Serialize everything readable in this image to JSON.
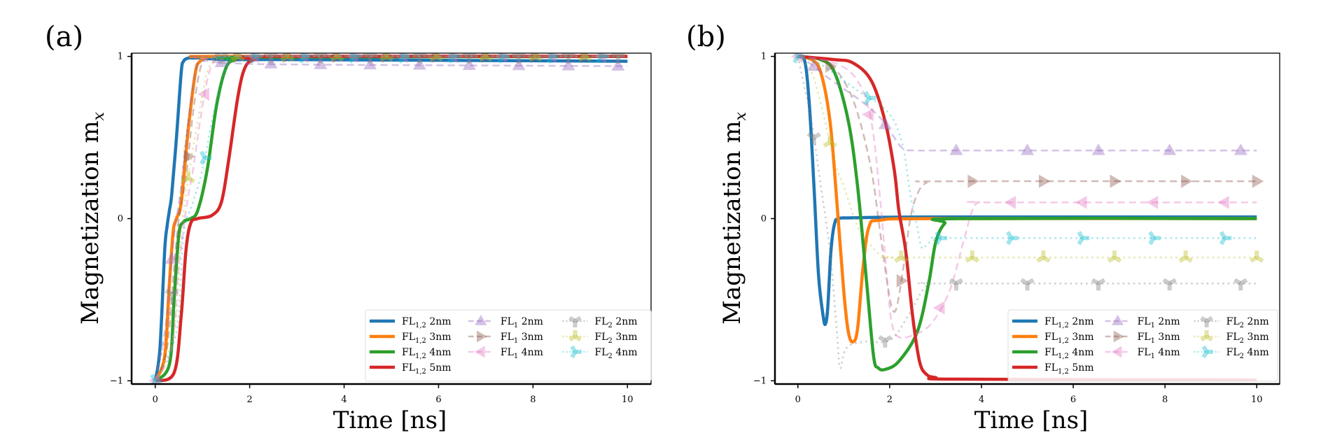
{
  "chart_data": [
    {
      "panel": "(a)",
      "type": "line",
      "xlabel": "Time [ns]",
      "ylabel": "Magnetization m_x",
      "xlim": [
        -0.5,
        10.5
      ],
      "ylim": [
        -1.02,
        1.02
      ],
      "xticks": [
        0,
        2,
        4,
        6,
        8,
        10
      ],
      "yticks": [
        -1,
        0,
        1
      ],
      "ytick_labels": [
        "−1",
        "0",
        "1"
      ],
      "grid": false,
      "legend": {
        "placement": "bottom-right",
        "columns": 3
      },
      "series": [
        {
          "name": "FL1,2 2nm",
          "label_main": "FL",
          "label_sub": "1,2",
          "label_tail": " 2nm",
          "color": "#1f77b4",
          "style": "solid",
          "marker": "none",
          "x": [
            0,
            0.1,
            0.2,
            0.25,
            0.3,
            0.35,
            0.45,
            0.55,
            0.6,
            0.7,
            0.8,
            1.0,
            1.5,
            3,
            10
          ],
          "y": [
            -1,
            -0.8,
            -0.2,
            -0.05,
            0.05,
            0.15,
            0.5,
            0.9,
            0.97,
            0.99,
            0.99,
            0.99,
            0.98,
            0.98,
            0.97
          ]
        },
        {
          "name": "FL1,2 3nm",
          "label_main": "FL",
          "label_sub": "1,2",
          "label_tail": " 3nm",
          "color": "#ff7f0e",
          "style": "solid",
          "marker": "none",
          "x": [
            0,
            0.2,
            0.3,
            0.38,
            0.45,
            0.55,
            0.7,
            0.85,
            0.95,
            1.1,
            1.5,
            10
          ],
          "y": [
            -1,
            -0.85,
            -0.4,
            -0.08,
            0.0,
            0.1,
            0.55,
            0.9,
            0.97,
            0.995,
            1.0,
            1.0
          ]
        },
        {
          "name": "FL1,2 4nm",
          "label_main": "FL",
          "label_sub": "1,2",
          "label_tail": " 4nm",
          "color": "#2ca02c",
          "style": "solid",
          "marker": "none",
          "x": [
            0,
            0.3,
            0.4,
            0.5,
            0.6,
            0.75,
            0.9,
            1.1,
            1.3,
            1.5,
            1.7,
            2.0,
            10
          ],
          "y": [
            -1,
            -0.9,
            -0.5,
            -0.1,
            -0.02,
            0.0,
            0.05,
            0.3,
            0.7,
            0.93,
            0.98,
            0.995,
            1.0
          ]
        },
        {
          "name": "FL1,2 5nm",
          "label_main": "FL",
          "label_sub": "1,2",
          "label_tail": " 5nm",
          "color": "#d62728",
          "style": "solid",
          "marker": "none",
          "x": [
            0,
            0.4,
            0.55,
            0.65,
            0.75,
            0.9,
            1.2,
            1.4,
            1.55,
            1.75,
            1.9,
            2.1,
            2.5,
            10
          ],
          "y": [
            -1,
            -0.95,
            -0.6,
            -0.2,
            -0.03,
            0.0,
            0.02,
            0.1,
            0.35,
            0.75,
            0.93,
            0.98,
            1.0,
            1.0
          ]
        },
        {
          "name": "FL1 2nm",
          "label_main": "FL",
          "label_sub": "1",
          "label_tail": " 2nm",
          "color": "#9467bd",
          "style": "dashed",
          "marker": "triangle-up",
          "x": [
            0,
            0.2,
            0.3,
            0.4,
            0.55,
            0.7,
            0.85,
            1.0,
            1.5,
            3,
            10
          ],
          "y": [
            -1,
            -0.7,
            -0.4,
            -0.1,
            0.2,
            0.6,
            0.9,
            0.97,
            0.96,
            0.95,
            0.94
          ]
        },
        {
          "name": "FL1 3nm",
          "label_main": "FL",
          "label_sub": "1",
          "label_tail": " 3nm",
          "color": "#8c564b",
          "style": "dashed",
          "marker": "triangle-right",
          "x": [
            0,
            0.25,
            0.4,
            0.5,
            0.65,
            0.8,
            0.95,
            1.1,
            1.5,
            10
          ],
          "y": [
            -1,
            -0.8,
            -0.3,
            0.0,
            0.25,
            0.65,
            0.92,
            0.99,
            1.0,
            1.0
          ]
        },
        {
          "name": "FL1 4nm",
          "label_main": "FL",
          "label_sub": "1",
          "label_tail": " 4nm",
          "color": "#e377c2",
          "style": "dashed",
          "marker": "triangle-left",
          "x": [
            0,
            0.35,
            0.5,
            0.65,
            0.8,
            0.95,
            1.1,
            1.25,
            1.5,
            10
          ],
          "y": [
            -1,
            -0.8,
            -0.3,
            0.05,
            0.3,
            0.6,
            0.85,
            0.97,
            1.0,
            1.0
          ]
        },
        {
          "name": "FL2 2nm",
          "label_main": "FL",
          "label_sub": "2",
          "label_tail": " 2nm",
          "color": "#7f7f7f",
          "style": "dotted",
          "marker": "tri-down",
          "x": [
            0,
            0.3,
            0.45,
            0.55,
            0.7,
            0.85,
            1.0,
            1.5,
            10
          ],
          "y": [
            -1,
            -0.6,
            -0.2,
            0.2,
            0.6,
            0.9,
            0.98,
            1.0,
            1.0
          ]
        },
        {
          "name": "FL2 3nm",
          "label_main": "FL",
          "label_sub": "2",
          "label_tail": " 3nm",
          "color": "#bcbd22",
          "style": "dotted",
          "marker": "tri-up",
          "x": [
            0,
            0.4,
            0.55,
            0.7,
            0.9,
            1.1,
            1.3,
            1.6,
            10
          ],
          "y": [
            -1,
            -0.7,
            -0.1,
            0.25,
            0.6,
            0.9,
            0.98,
            1.0,
            1.0
          ]
        },
        {
          "name": "FL2 4nm",
          "label_main": "FL",
          "label_sub": "2",
          "label_tail": " 4nm",
          "color": "#17becf",
          "style": "dotted",
          "marker": "tri-left",
          "x": [
            0,
            0.45,
            0.6,
            0.8,
            1.0,
            1.2,
            1.4,
            1.6,
            1.9,
            10
          ],
          "y": [
            -1,
            -0.7,
            -0.1,
            0.1,
            0.3,
            0.6,
            0.85,
            0.97,
            1.0,
            1.0
          ]
        }
      ]
    },
    {
      "panel": "(b)",
      "type": "line",
      "xlabel": "Time [ns]",
      "ylabel": "Magnetization m_x",
      "xlim": [
        -0.5,
        10.5
      ],
      "ylim": [
        -1.02,
        1.02
      ],
      "xticks": [
        0,
        2,
        4,
        6,
        8,
        10
      ],
      "yticks": [
        -1,
        0,
        1
      ],
      "ytick_labels": [
        "−1",
        "0",
        "1"
      ],
      "grid": false,
      "legend": {
        "placement": "bottom-right",
        "columns": 3
      },
      "series": [
        {
          "name": "FL1,2 2nm",
          "label_main": "FL",
          "label_sub": "1,2",
          "label_tail": " 2nm",
          "color": "#1f77b4",
          "style": "solid",
          "marker": "none",
          "x": [
            0,
            0.15,
            0.25,
            0.35,
            0.45,
            0.55,
            0.6,
            0.65,
            0.72,
            0.8,
            0.9,
            1.2,
            3,
            10
          ],
          "y": [
            1.0,
            0.97,
            0.7,
            0.2,
            -0.35,
            -0.6,
            -0.65,
            -0.55,
            -0.2,
            -0.03,
            0.0,
            0.005,
            0.01,
            0.01
          ]
        },
        {
          "name": "FL1,2 3nm",
          "label_main": "FL",
          "label_sub": "1,2",
          "label_tail": " 3nm",
          "color": "#ff7f0e",
          "style": "solid",
          "marker": "none",
          "x": [
            0,
            0.3,
            0.5,
            0.7,
            0.85,
            1.0,
            1.1,
            1.2,
            1.3,
            1.42,
            1.55,
            1.8,
            3,
            10
          ],
          "y": [
            1.0,
            0.98,
            0.9,
            0.6,
            0.1,
            -0.45,
            -0.7,
            -0.76,
            -0.68,
            -0.3,
            -0.05,
            -0.01,
            0.0,
            0.0
          ]
        },
        {
          "name": "FL1,2 4nm",
          "label_main": "FL",
          "label_sub": "1,2",
          "label_tail": " 4nm",
          "color": "#2ca02c",
          "style": "solid",
          "marker": "none",
          "x": [
            0,
            0.5,
            0.8,
            1.1,
            1.3,
            1.5,
            1.65,
            1.75,
            1.9,
            2.2,
            2.6,
            2.85,
            3.0,
            3.2,
            3.5,
            10
          ],
          "y": [
            1.0,
            0.98,
            0.9,
            0.6,
            0.2,
            -0.4,
            -0.85,
            -0.92,
            -0.93,
            -0.88,
            -0.7,
            -0.4,
            -0.15,
            -0.03,
            0.0,
            0.0
          ]
        },
        {
          "name": "FL1,2 5nm",
          "label_main": "FL",
          "label_sub": "1,2",
          "label_tail": " 5nm",
          "color": "#d62728",
          "style": "solid",
          "marker": "none",
          "x": [
            0,
            0.8,
            1.2,
            1.6,
            1.9,
            2.1,
            2.2,
            2.35,
            2.5,
            2.65,
            2.8,
            3.0,
            3.5,
            10
          ],
          "y": [
            1.0,
            0.98,
            0.96,
            0.85,
            0.6,
            0.3,
            0.05,
            -0.2,
            -0.6,
            -0.88,
            -0.96,
            -0.98,
            -0.99,
            -0.995
          ]
        },
        {
          "name": "FL1 2nm",
          "label_main": "FL",
          "label_sub": "1",
          "label_tail": " 2nm",
          "color": "#9467bd",
          "style": "dashed",
          "marker": "triangle-up",
          "x": [
            0,
            0.3,
            0.6,
            1.0,
            1.4,
            1.8,
            2.1,
            2.3,
            2.6,
            3.5,
            10
          ],
          "y": [
            1.0,
            0.95,
            0.88,
            0.8,
            0.72,
            0.62,
            0.5,
            0.43,
            0.42,
            0.42,
            0.42
          ]
        },
        {
          "name": "FL1 3nm",
          "label_main": "FL",
          "label_sub": "1",
          "label_tail": " 3nm",
          "color": "#8c564b",
          "style": "dashed",
          "marker": "triangle-right",
          "x": [
            0,
            0.6,
            1.0,
            1.3,
            1.6,
            1.8,
            1.95,
            2.05,
            2.15,
            2.3,
            2.45,
            2.6,
            2.8,
            3.2,
            10
          ],
          "y": [
            1.0,
            0.97,
            0.85,
            0.65,
            0.3,
            -0.1,
            -0.4,
            -0.55,
            -0.55,
            -0.3,
            0.0,
            0.15,
            0.22,
            0.23,
            0.23
          ]
        },
        {
          "name": "FL1 4nm",
          "label_main": "FL",
          "label_sub": "1",
          "label_tail": " 4nm",
          "color": "#e377c2",
          "style": "dashed",
          "marker": "triangle-left",
          "x": [
            0,
            0.8,
            1.3,
            1.6,
            1.8,
            1.95,
            2.05,
            2.2,
            2.5,
            2.9,
            3.3,
            3.6,
            3.8,
            3.95,
            4.2,
            10
          ],
          "y": [
            1.0,
            0.96,
            0.85,
            0.6,
            0.1,
            -0.4,
            -0.65,
            -0.73,
            -0.72,
            -0.65,
            -0.45,
            -0.15,
            0.05,
            0.1,
            0.1,
            0.1
          ]
        },
        {
          "name": "FL2 2nm",
          "label_main": "FL",
          "label_sub": "2",
          "label_tail": " 2nm",
          "color": "#7f7f7f",
          "style": "dotted",
          "marker": "tri-down",
          "x": [
            0,
            0.15,
            0.3,
            0.5,
            0.7,
            0.85,
            0.92,
            1.05,
            1.4,
            2.0,
            2.4,
            2.7,
            2.9,
            3.2,
            10
          ],
          "y": [
            1.0,
            0.8,
            0.6,
            0.2,
            -0.2,
            -0.7,
            -0.92,
            -0.8,
            -0.76,
            -0.75,
            -0.6,
            -0.45,
            -0.4,
            -0.4,
            -0.4
          ]
        },
        {
          "name": "FL2 3nm",
          "label_main": "FL",
          "label_sub": "2",
          "label_tail": " 3nm",
          "color": "#bcbd22",
          "style": "dotted",
          "marker": "tri-up",
          "x": [
            0,
            0.3,
            0.55,
            0.8,
            1.0,
            1.3,
            1.55,
            1.7,
            1.85,
            2.1,
            2.5,
            10
          ],
          "y": [
            1.0,
            0.9,
            0.65,
            0.35,
            0.2,
            -0.05,
            -0.15,
            -0.2,
            -0.23,
            -0.24,
            -0.24,
            -0.24
          ]
        },
        {
          "name": "FL2 4nm",
          "label_main": "FL",
          "label_sub": "2",
          "label_tail": " 4nm",
          "color": "#17becf",
          "style": "dotted",
          "marker": "tri-left",
          "x": [
            0,
            0.5,
            1.0,
            1.4,
            1.8,
            2.1,
            2.3,
            2.45,
            2.6,
            2.7,
            2.85,
            3.1,
            3.5,
            10
          ],
          "y": [
            1.0,
            0.95,
            0.85,
            0.77,
            0.7,
            0.6,
            0.43,
            0.15,
            -0.05,
            -0.18,
            -0.15,
            -0.12,
            -0.12,
            -0.12
          ]
        }
      ]
    }
  ]
}
